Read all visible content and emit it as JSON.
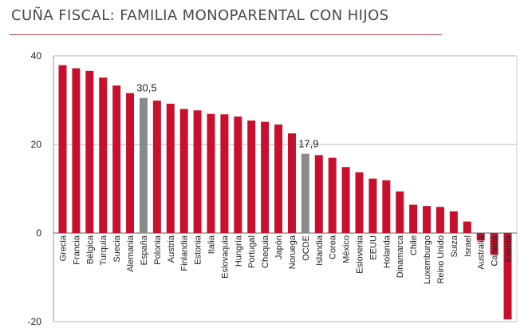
{
  "chart_data": {
    "type": "bar",
    "title": "CUÑA FISCAL: FAMILIA MONOPARENTAL CON HIJOS",
    "xlabel": "",
    "ylabel": "",
    "ylim": [
      -20,
      40
    ],
    "yticks": [
      "40",
      "20",
      "0",
      "-20"
    ],
    "categories": [
      "Grecia",
      "Francia",
      "Bélgica",
      "Turquía",
      "Suecia",
      "Alemania",
      "España",
      "Polonia",
      "Austria",
      "Finlandia",
      "Estonia",
      "Italia",
      "Eslovaquia",
      "Hungría",
      "Portugal",
      "Chequia",
      "Japón",
      "Noruega",
      "OCDE",
      "Islandia",
      "Corea",
      "México",
      "Eslovenia",
      "EEUU",
      "Holanda",
      "Dinamarca",
      "Chile",
      "Luxemburgo",
      "Reino Unido",
      "Suiza",
      "Israel",
      "Australia",
      "Canadá",
      "Irlanda"
    ],
    "values": [
      37.9,
      37.2,
      36.6,
      35.1,
      33.3,
      31.6,
      30.5,
      29.9,
      29.2,
      28.0,
      27.7,
      26.9,
      26.8,
      26.3,
      25.4,
      25.1,
      24.5,
      22.5,
      17.9,
      17.6,
      17.0,
      14.9,
      13.7,
      12.3,
      11.9,
      9.4,
      6.4,
      6.1,
      5.9,
      4.9,
      2.6,
      -1.7,
      -4.9,
      -19.5
    ],
    "highlight": [
      "España",
      "OCDE"
    ],
    "annotations": [
      {
        "category": "España",
        "text": "30,5"
      },
      {
        "category": "OCDE",
        "text": "17,9"
      }
    ],
    "colors": {
      "bar": "#c8102e",
      "highlight": "#8a8a8a",
      "grid": "#7f7f7f",
      "axis": "#9a9a9a"
    },
    "grid": true
  }
}
